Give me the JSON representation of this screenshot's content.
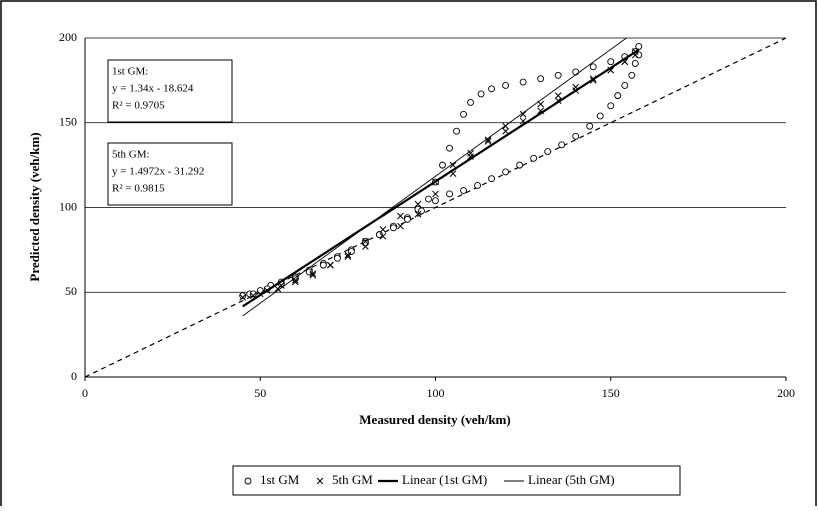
{
  "chart_data": {
    "type": "scatter",
    "x_label": "Measured density (veh/km)",
    "y_label": "Predicted density (veh/km)",
    "xlim": [
      0,
      200
    ],
    "ylim": [
      0,
      200
    ],
    "xticks": [
      0,
      50,
      100,
      150,
      200
    ],
    "yticks": [
      0,
      50,
      100,
      150,
      200
    ],
    "grid": true,
    "legend": "bottom",
    "series": [
      {
        "name": "1st GM",
        "color": "#000000",
        "marker": "circle",
        "x": [
          45,
          47,
          50,
          53,
          56,
          60,
          64,
          68,
          72,
          76,
          80,
          84,
          88,
          92,
          95,
          98,
          100,
          102,
          104,
          106,
          108,
          110,
          113,
          116,
          120,
          125,
          130,
          135,
          140,
          145,
          150,
          154,
          157,
          158,
          158,
          157,
          156,
          154,
          152,
          150,
          147,
          144,
          140,
          136,
          132,
          128,
          124,
          120,
          116,
          112,
          108,
          104,
          100,
          96,
          92,
          88,
          84,
          80,
          76,
          72,
          68,
          64,
          60,
          56,
          52,
          48
        ],
        "values": [
          48,
          49,
          51,
          54,
          56,
          59,
          63,
          67,
          71,
          75,
          80,
          84,
          89,
          94,
          99,
          105,
          115,
          125,
          135,
          145,
          155,
          162,
          167,
          170,
          172,
          174,
          176,
          178,
          180,
          183,
          186,
          189,
          192,
          195,
          190,
          185,
          178,
          172,
          166,
          160,
          154,
          148,
          142,
          137,
          133,
          129,
          125,
          121,
          117,
          113,
          110,
          108,
          104,
          98,
          93,
          88,
          84,
          79,
          74,
          70,
          66,
          62,
          58,
          55,
          52,
          49
        ]
      },
      {
        "name": "5th GM",
        "color": "#000000",
        "marker": "x",
        "x": [
          45,
          48,
          52,
          56,
          60,
          65,
          70,
          75,
          80,
          85,
          90,
          95,
          100,
          105,
          110,
          115,
          120,
          125,
          130,
          135,
          140,
          145,
          150,
          154,
          157,
          157,
          154,
          150,
          145,
          140,
          135,
          130,
          125,
          120,
          115,
          110,
          105,
          100,
          95,
          90,
          85,
          80,
          75,
          70,
          65,
          60,
          55,
          50
        ],
        "values": [
          47,
          48,
          51,
          54,
          57,
          61,
          66,
          71,
          77,
          83,
          89,
          96,
          108,
          120,
          130,
          140,
          148,
          155,
          161,
          166,
          171,
          176,
          181,
          186,
          192,
          190,
          186,
          181,
          175,
          169,
          163,
          157,
          151,
          145,
          139,
          132,
          125,
          115,
          102,
          95,
          87,
          80,
          72,
          66,
          60,
          56,
          52,
          49
        ]
      },
      {
        "name": "Linear (1st GM)",
        "color": "#000000",
        "marker": "line",
        "line_width": 2.2,
        "x": [
          45,
          158
        ],
        "values": [
          41.676,
          193.096
        ]
      },
      {
        "name": "Linear (5th GM)",
        "color": "#000000",
        "marker": "line",
        "line_width": 0.9,
        "x": [
          45,
          158
        ],
        "values": [
          36.082,
          205.266
        ]
      }
    ],
    "reference_line": {
      "x": [
        0,
        200
      ],
      "values": [
        0,
        200
      ],
      "dash": true
    },
    "annotations": [
      {
        "lines": [
          "1st GM:",
          "y = 1.34x - 18.624",
          "R² = 0.9705"
        ]
      },
      {
        "lines": [
          "5th GM:",
          "y = 1.4972x - 31.292",
          "R² = 0.9815"
        ]
      }
    ]
  }
}
